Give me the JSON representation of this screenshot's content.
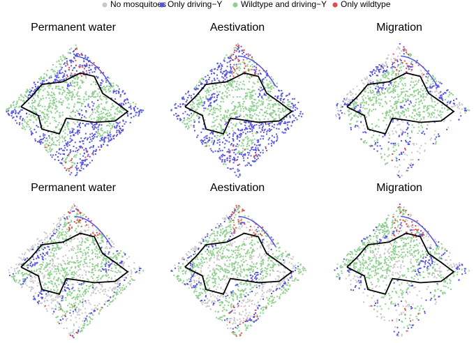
{
  "legend": [
    {
      "label": "No mosquitoes",
      "color": "#c8c8c8"
    },
    {
      "label": "Only driving−Y",
      "color": "#5454e0"
    },
    {
      "label": "Wildtype and driving−Y",
      "color": "#8fcf8f"
    },
    {
      "label": "Only wildtype",
      "color": "#e04b4b"
    }
  ],
  "panels": [
    {
      "title": "Permanent water"
    },
    {
      "title": "Aestivation"
    },
    {
      "title": "Migration"
    },
    {
      "title": "Permanent water"
    },
    {
      "title": "Aestivation"
    },
    {
      "title": "Migration"
    }
  ]
}
